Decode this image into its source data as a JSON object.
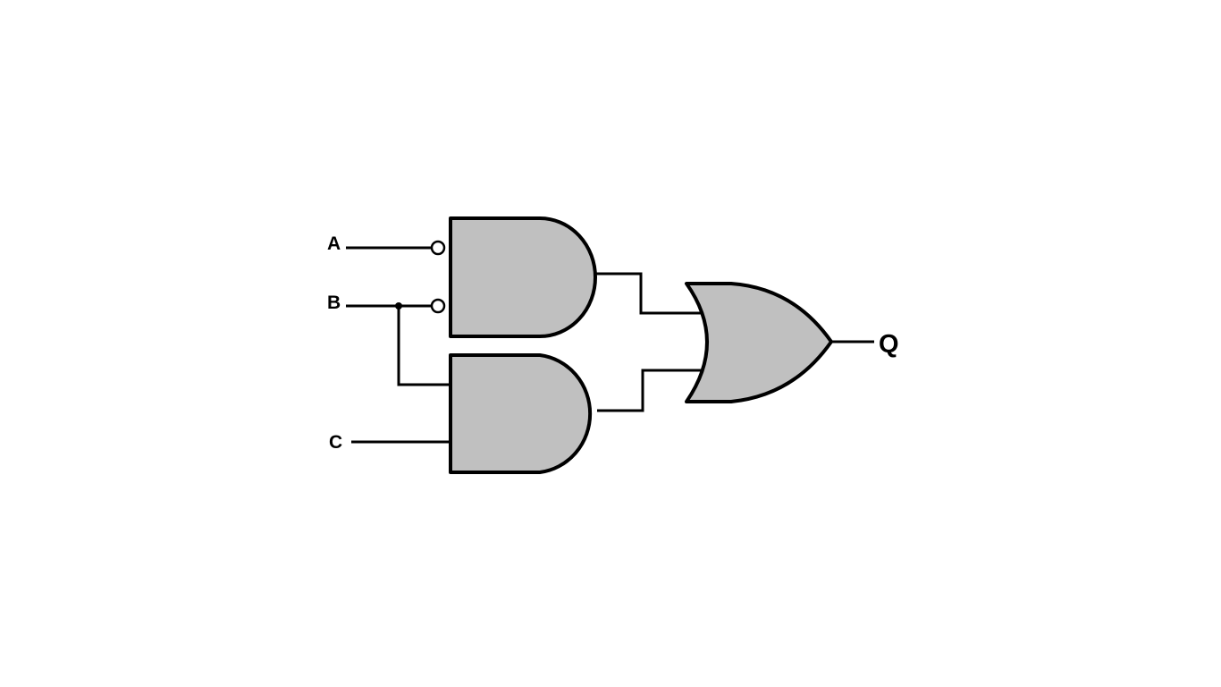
{
  "diagram": {
    "inputs": {
      "a": "A",
      "b": "B",
      "c": "C"
    },
    "output": {
      "q": "Q"
    },
    "colors": {
      "gate_fill": "#c0c0c0",
      "stroke": "#000000",
      "background": "#ffffff"
    }
  }
}
